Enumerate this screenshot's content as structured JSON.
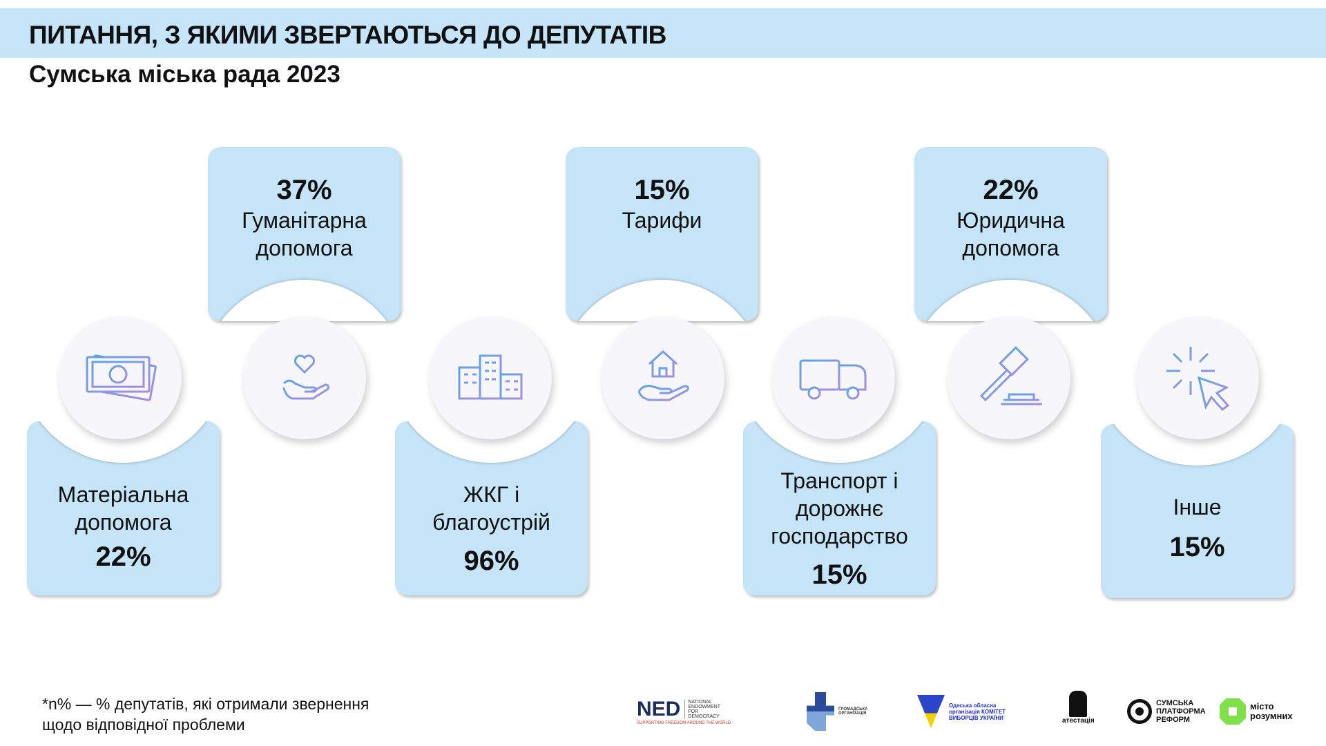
{
  "header": {
    "title": "ПИТАННЯ, З ЯКИМИ ЗВЕРТАЮТЬСЯ ДО ДЕПУТАТІВ",
    "subtitle": "Сумська міська рада 2023"
  },
  "items": [
    {
      "label": "Матеріальна допомога",
      "percent": "22%",
      "icon": "money-icon"
    },
    {
      "label": "Гуманітарна допомога",
      "percent": "37%",
      "icon": "heart-hand-icon"
    },
    {
      "label": "ЖКГ і благоустрій",
      "percent": "96%",
      "icon": "buildings-icon"
    },
    {
      "label": "Тарифи",
      "percent": "15%",
      "icon": "house-hand-icon"
    },
    {
      "label": "Транспорт і дорожнє господарство",
      "percent": "15%",
      "icon": "truck-icon"
    },
    {
      "label": "Юридична допомога",
      "percent": "22%",
      "icon": "gavel-icon"
    },
    {
      "label": "Інше",
      "percent": "15%",
      "icon": "cursor-click-icon"
    }
  ],
  "footnote": {
    "line1": "*n% — % депутатів, які отримали звернення",
    "line2": "щодо відповідної проблеми"
  },
  "logos": {
    "ned": "NED",
    "ned_sub": "NATIONAL ENDOWMENT FOR DEMOCRACY",
    "ned_tag": "SUPPORTING FREEDOM AROUND THE WORLD",
    "go": "ГРОМАДСЬКА ОРГАНІЗАЦІЯ",
    "kvu": "Одеська обласна організація КОМІТЕТ ВИБОРЦІВ УКРАЇНИ",
    "atest": "атестація",
    "spr": "СУМСЬКА ПЛАТФОРМА РЕФОРМ",
    "misto": "місто розумних"
  },
  "colors": {
    "card": "#c5e4f7",
    "icon_from": "#5aa7e6",
    "icon_to": "#a98ce0"
  }
}
